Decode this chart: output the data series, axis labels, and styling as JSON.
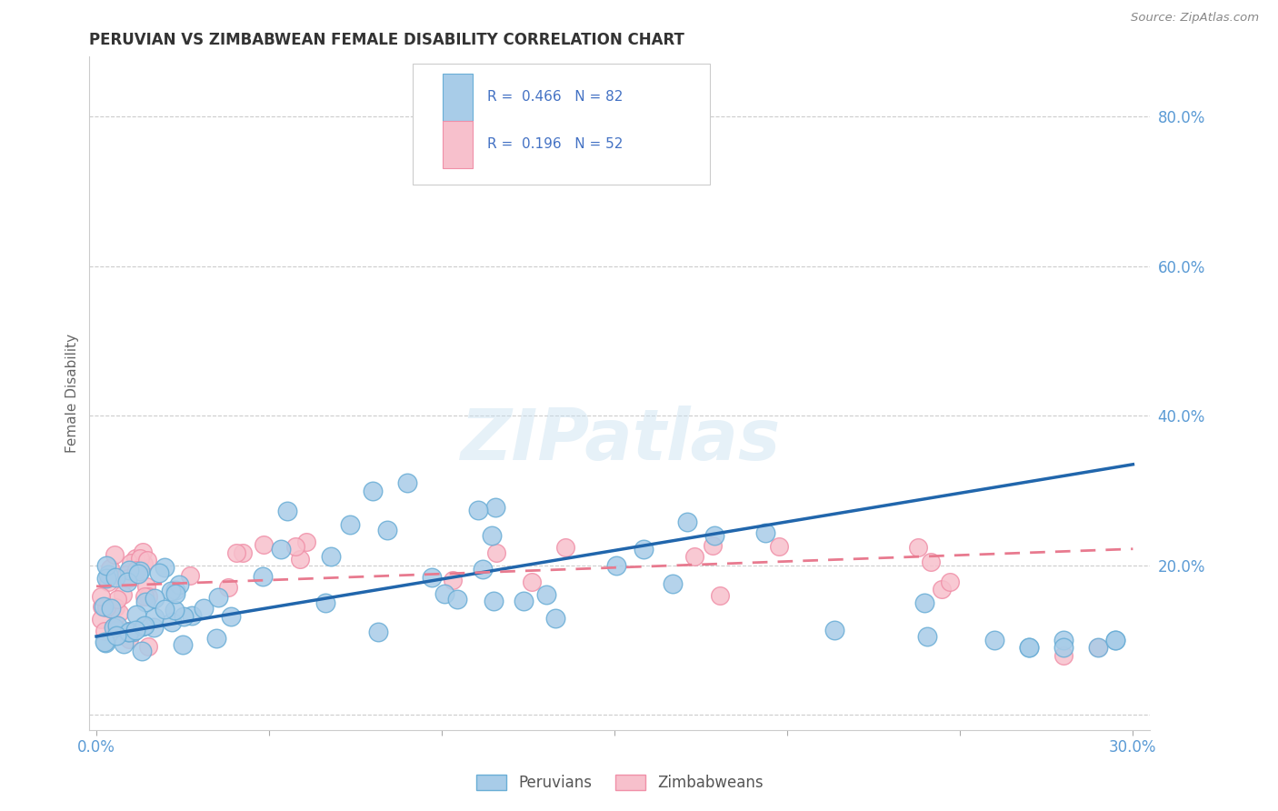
{
  "title": "PERUVIAN VS ZIMBABWEAN FEMALE DISABILITY CORRELATION CHART",
  "source": "Source: ZipAtlas.com",
  "ylabel": "Female Disability",
  "xlim": [
    -0.002,
    0.305
  ],
  "ylim": [
    -0.02,
    0.88
  ],
  "peruvian_color": "#a8cce8",
  "peruvian_edge_color": "#6aaed6",
  "zimbabwean_color": "#f7c0cc",
  "zimbabwean_edge_color": "#f090a8",
  "peruvian_line_color": "#2166ac",
  "zimbabwean_line_color": "#e87a8f",
  "R_peruvian": 0.466,
  "N_peruvian": 82,
  "R_zimbabwean": 0.196,
  "N_zimbabwean": 52,
  "watermark": "ZIPatlas",
  "ytick_vals": [
    0.0,
    0.2,
    0.4,
    0.6,
    0.8
  ],
  "ytick_labels": [
    "",
    "20.0%",
    "40.0%",
    "60.0%",
    "80.0%"
  ],
  "xtick_vals": [
    0.0,
    0.05,
    0.1,
    0.15,
    0.2,
    0.25,
    0.3
  ],
  "xtick_labels": [
    "0.0%",
    "",
    "",
    "",
    "",
    "",
    "30.0%"
  ],
  "peru_line_x0": 0.0,
  "peru_line_y0": 0.105,
  "peru_line_x1": 0.3,
  "peru_line_y1": 0.335,
  "zimb_line_x0": 0.0,
  "zimb_line_y0": 0.172,
  "zimb_line_x1": 0.3,
  "zimb_line_y1": 0.222
}
